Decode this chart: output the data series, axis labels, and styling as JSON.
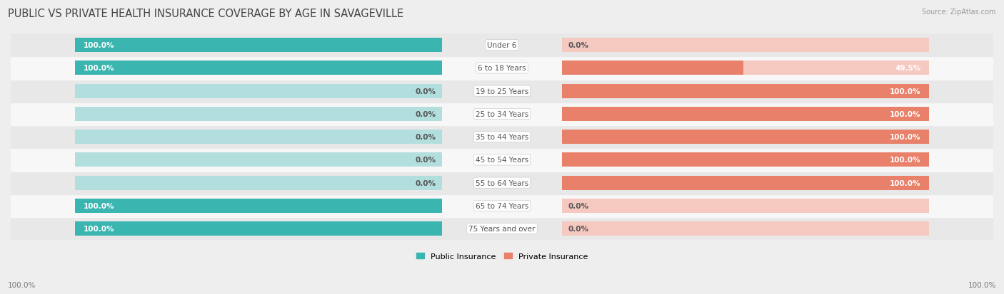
{
  "title": "PUBLIC VS PRIVATE HEALTH INSURANCE COVERAGE BY AGE IN SAVAGEVILLE",
  "source": "Source: ZipAtlas.com",
  "categories": [
    "Under 6",
    "6 to 18 Years",
    "19 to 25 Years",
    "25 to 34 Years",
    "35 to 44 Years",
    "45 to 54 Years",
    "55 to 64 Years",
    "65 to 74 Years",
    "75 Years and over"
  ],
  "public_values": [
    100.0,
    100.0,
    0.0,
    0.0,
    0.0,
    0.0,
    0.0,
    100.0,
    100.0
  ],
  "private_values": [
    0.0,
    49.5,
    100.0,
    100.0,
    100.0,
    100.0,
    100.0,
    0.0,
    0.0
  ],
  "public_color": "#3ab5b0",
  "private_color": "#e8806a",
  "public_color_light": "#b2dedd",
  "private_color_light": "#f5c8c0",
  "bg_color": "#eeeeee",
  "row_bg_light": "#f7f7f7",
  "row_bg_dark": "#e8e8e8",
  "text_color_white": "#ffffff",
  "text_color_dark": "#555555",
  "title_fontsize": 10.5,
  "label_fontsize": 7.5,
  "value_fontsize": 7.5,
  "legend_fontsize": 8,
  "axis_label_fontsize": 7.5
}
